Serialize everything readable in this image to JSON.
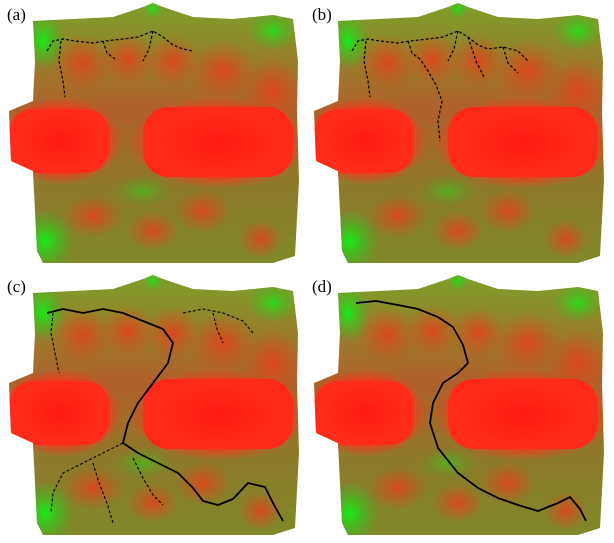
{
  "panels": [
    {
      "id": "a",
      "label": "(a)"
    },
    {
      "id": "b",
      "label": "(b)"
    },
    {
      "id": "c",
      "label": "(c)"
    },
    {
      "id": "d",
      "label": "(d)"
    }
  ],
  "colors": {
    "terrain_high": "#ff2a1a",
    "terrain_mid": "#8a8a22",
    "terrain_low": "#22dd22",
    "path": "#000000"
  }
}
